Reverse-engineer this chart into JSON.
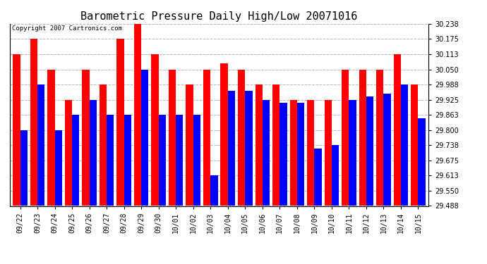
{
  "title": "Barometric Pressure Daily High/Low 20071016",
  "copyright_text": "Copyright 2007 Cartronics.com",
  "categories": [
    "09/22",
    "09/23",
    "09/24",
    "09/25",
    "09/26",
    "09/27",
    "09/28",
    "09/29",
    "09/30",
    "10/01",
    "10/02",
    "10/03",
    "10/04",
    "10/05",
    "10/06",
    "10/07",
    "10/08",
    "10/09",
    "10/10",
    "10/11",
    "10/12",
    "10/13",
    "10/14",
    "10/15"
  ],
  "highs": [
    30.113,
    30.175,
    30.05,
    29.925,
    30.05,
    29.988,
    30.175,
    30.238,
    30.113,
    30.05,
    29.988,
    30.05,
    30.075,
    30.05,
    29.988,
    29.988,
    29.925,
    29.925,
    29.925,
    30.05,
    30.05,
    30.05,
    30.113,
    29.988
  ],
  "lows": [
    29.8,
    29.988,
    29.8,
    29.863,
    29.925,
    29.863,
    29.863,
    30.05,
    29.863,
    29.863,
    29.863,
    29.613,
    29.963,
    29.963,
    29.925,
    29.913,
    29.913,
    29.725,
    29.738,
    29.925,
    29.938,
    29.95,
    29.988,
    29.85
  ],
  "high_color": "#ff0000",
  "low_color": "#0000ff",
  "background_color": "#ffffff",
  "plot_bg_color": "#ffffff",
  "grid_color": "#b0b0b0",
  "ylim_min": 29.488,
  "ylim_max": 30.238,
  "ytick_values": [
    29.488,
    29.55,
    29.613,
    29.675,
    29.738,
    29.8,
    29.863,
    29.925,
    29.988,
    30.05,
    30.113,
    30.175,
    30.238
  ],
  "title_fontsize": 11,
  "tick_fontsize": 7,
  "bar_width": 0.42
}
